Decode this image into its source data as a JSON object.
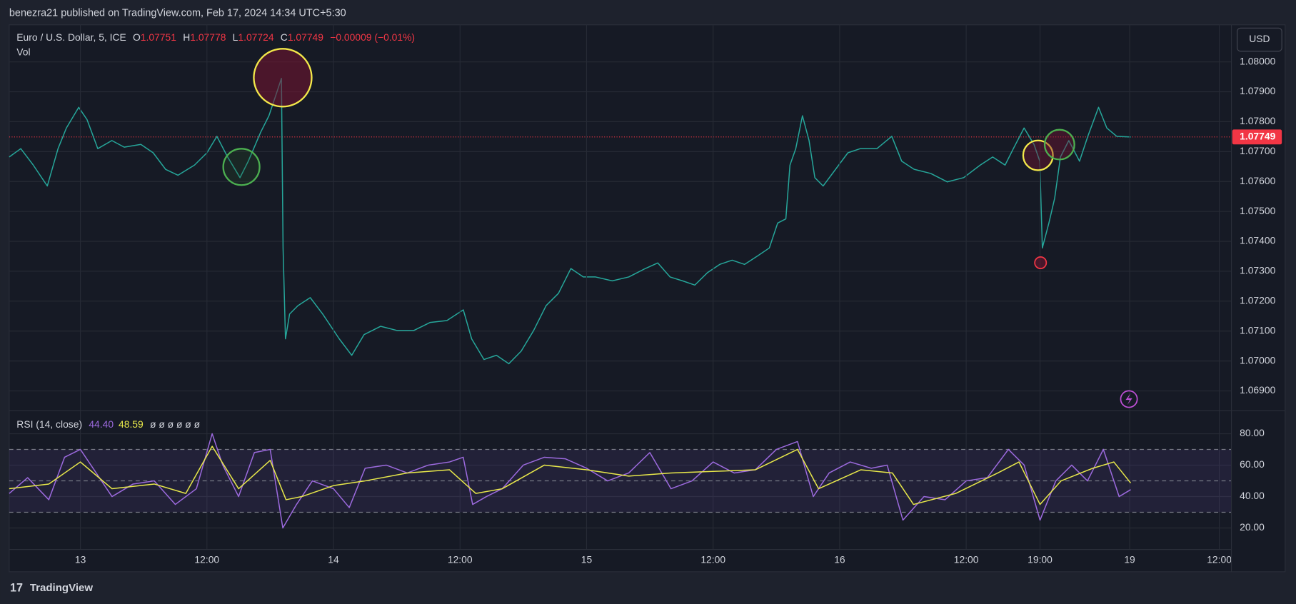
{
  "header": "benezra21 published on TradingView.com, Feb 17, 2024 14:34 UTC+5:30",
  "footer": "TradingView",
  "currency": "USD",
  "chart_data": [
    {
      "type": "line",
      "title": "Euro / U.S. Dollar, 5, ICE",
      "ohlc": [
        {
          "label": "O",
          "value": 1.07751
        },
        {
          "label": "H",
          "value": 1.07778
        },
        {
          "label": "L",
          "value": 1.07724
        },
        {
          "label": "C",
          "value": 1.07749
        }
      ],
      "change": "−0.00009 (−0.01%)",
      "subtitle": "Vol",
      "color": "#26a69a",
      "x": [
        -6.75,
        -5.65,
        -4.47,
        -3.14,
        -2.12,
        -1.33,
        -0.16,
        0.63,
        1.65,
        2.98,
        4.16,
        5.73,
        6.9,
        8.08,
        9.25,
        10.82,
        12,
        12.94,
        13.96,
        15.14,
        15.92,
        17.1,
        17.88,
        18.67,
        19.06,
        19.22,
        19.45,
        19.84,
        20.63,
        21.8,
        22.98,
        24.55,
        25.73,
        26.9,
        28.47,
        30.04,
        31.61,
        33.18,
        34.75,
        36.31,
        37.1,
        38.27,
        39.45,
        40.63,
        41.8,
        42.98,
        44.16,
        45.33,
        46.51,
        47.69,
        48.86,
        50.43,
        52,
        53.57,
        54.75,
        55.92,
        57.1,
        58.27,
        59.45,
        60.63,
        61.8,
        62.98,
        64.16,
        65.33,
        66.12,
        66.9,
        67.29,
        67.84,
        68.47,
        69.1,
        69.65,
        70.43,
        71.61,
        72.78,
        73.96,
        75.53,
        76.94,
        77.88,
        79.06,
        80.63,
        82.2,
        83.76,
        85.33,
        86.51,
        87.69,
        88.47,
        89.49,
        90.43,
        90.98,
        91.22,
        91.84,
        92.39,
        92.94,
        93.73,
        94.75,
        95.53,
        96.55,
        97.33,
        98.27,
        99.61
      ],
      "series": [
        {
          "color": "#26a69a",
          "values": [
            1.07682,
            1.0771,
            1.07655,
            1.07585,
            1.0771,
            1.07779,
            1.07848,
            1.07807,
            1.0771,
            1.07737,
            1.07715,
            1.07724,
            1.07696,
            1.07641,
            1.07621,
            1.07655,
            1.07696,
            1.07751,
            1.07682,
            1.07613,
            1.07668,
            1.07765,
            1.0782,
            1.07903,
            1.07945,
            1.07378,
            1.07074,
            1.07157,
            1.07185,
            1.07212,
            1.07157,
            1.07074,
            1.07019,
            1.07088,
            1.07116,
            1.07102,
            1.07102,
            1.07129,
            1.07135,
            1.07171,
            1.07074,
            1.07005,
            1.07019,
            1.06991,
            1.07033,
            1.07102,
            1.07185,
            1.07226,
            1.07309,
            1.07281,
            1.07281,
            1.07268,
            1.07281,
            1.07309,
            1.07328,
            1.07281,
            1.07268,
            1.07254,
            1.07295,
            1.07323,
            1.07337,
            1.07323,
            1.0735,
            1.07378,
            1.07461,
            1.07475,
            1.07655,
            1.0771,
            1.0782,
            1.07737,
            1.07613,
            1.07585,
            1.07641,
            1.07696,
            1.0771,
            1.0771,
            1.07751,
            1.07668,
            1.07641,
            1.07627,
            1.07599,
            1.07613,
            1.07655,
            1.07682,
            1.07655,
            1.0771,
            1.07779,
            1.07724,
            1.07668,
            1.07378,
            1.07461,
            1.07544,
            1.07682,
            1.07737,
            1.07668,
            1.07751,
            1.07848,
            1.07779,
            1.07751,
            1.07749
          ]
        }
      ],
      "last_price": 1.07749,
      "last_price_color": "#f23645",
      "xlim": [
        -6.75,
        109.15
      ],
      "ylim": [
        1.06834,
        1.08124
      ],
      "yticks": [
        {
          "value": 1.069,
          "label": "1.06900"
        },
        {
          "value": 1.07,
          "label": "1.07000"
        },
        {
          "value": 1.071,
          "label": "1.07100"
        },
        {
          "value": 1.072,
          "label": "1.07200"
        },
        {
          "value": 1.073,
          "label": "1.07300"
        },
        {
          "value": 1.074,
          "label": "1.07400"
        },
        {
          "value": 1.075,
          "label": "1.07500"
        },
        {
          "value": 1.076,
          "label": "1.07600"
        },
        {
          "value": 1.077,
          "label": "1.07700"
        },
        {
          "value": 1.078,
          "label": "1.07800"
        },
        {
          "value": 1.079,
          "label": "1.07900"
        },
        {
          "value": 1.08,
          "label": "1.08000"
        }
      ],
      "grid": true
    },
    {
      "type": "line",
      "title": "RSI (14, close)",
      "legend_values": [
        "44.40",
        "48.59"
      ],
      "legend_extra": "ø ø ø ø ø ø",
      "x": [
        -6.75,
        -5,
        -3,
        -1.5,
        0,
        1.5,
        3,
        5,
        7,
        9,
        11,
        12.5,
        13.5,
        15,
        16.5,
        18,
        19.2,
        20.5,
        22,
        24,
        25.5,
        27,
        29,
        31,
        33,
        35,
        36.3,
        37.2,
        38.5,
        40,
        42,
        44,
        46,
        48,
        50,
        52,
        54,
        56,
        58,
        60,
        62,
        64,
        66,
        68,
        69.5,
        71,
        73,
        75,
        76.5,
        78,
        80,
        82,
        84,
        86,
        88,
        89.5,
        91,
        92.5,
        94,
        95.5,
        97,
        98.5,
        99.6
      ],
      "series": [
        {
          "color": "#9c6ade",
          "values": [
            42,
            52,
            38,
            65,
            70,
            55,
            40,
            48,
            50,
            35,
            45,
            80,
            60,
            40,
            68,
            70,
            20,
            35,
            50,
            45,
            33,
            58,
            60,
            55,
            60,
            62,
            65,
            35,
            40,
            45,
            60,
            65,
            64,
            58,
            50,
            55,
            68,
            45,
            50,
            62,
            55,
            57,
            70,
            75,
            40,
            55,
            62,
            58,
            60,
            25,
            40,
            38,
            50,
            52,
            70,
            60,
            25,
            50,
            60,
            50,
            70,
            40,
            44.4
          ]
        },
        {
          "color": "#e8e84a",
          "x": [
            -6.75,
            -3,
            0,
            3,
            7,
            10,
            12.5,
            15,
            18,
            19.5,
            21,
            24,
            27,
            31,
            35,
            37.5,
            40,
            44,
            48,
            52,
            56,
            60,
            64,
            68,
            70,
            74,
            77,
            79,
            83,
            87,
            89,
            91,
            93,
            96,
            98,
            99.6
          ],
          "values": [
            45,
            48,
            62,
            45,
            48,
            42,
            72,
            45,
            63,
            38,
            40,
            47,
            50,
            55,
            57,
            42,
            45,
            60,
            57,
            53,
            55,
            56,
            57,
            70,
            45,
            57,
            55,
            35,
            42,
            55,
            62,
            35,
            50,
            58,
            62,
            48.59
          ]
        }
      ],
      "upper_band": 70,
      "middle_band": 50,
      "lower_band": 30,
      "xlim": [
        -6.75,
        109.15
      ],
      "xticks": [
        {
          "value": 0,
          "label": "13"
        },
        {
          "value": 12,
          "label": "12:00"
        },
        {
          "value": 24,
          "label": "14"
        },
        {
          "value": 36,
          "label": "12:00"
        },
        {
          "value": 48,
          "label": "15"
        },
        {
          "value": 60,
          "label": "12:00"
        },
        {
          "value": 72,
          "label": "16"
        },
        {
          "value": 84,
          "label": "12:00"
        },
        {
          "value": 91,
          "label": "19:00"
        },
        {
          "value": 99.5,
          "label": "19"
        },
        {
          "value": 108,
          "label": "12:00"
        }
      ],
      "ylim": [
        6.3,
        94.7
      ],
      "yticks": [
        {
          "value": 20,
          "label": "20.00"
        },
        {
          "value": 40,
          "label": "40.00"
        },
        {
          "value": 60,
          "label": "60.00"
        },
        {
          "value": 80,
          "label": "80.00"
        }
      ],
      "grid": true
    }
  ]
}
